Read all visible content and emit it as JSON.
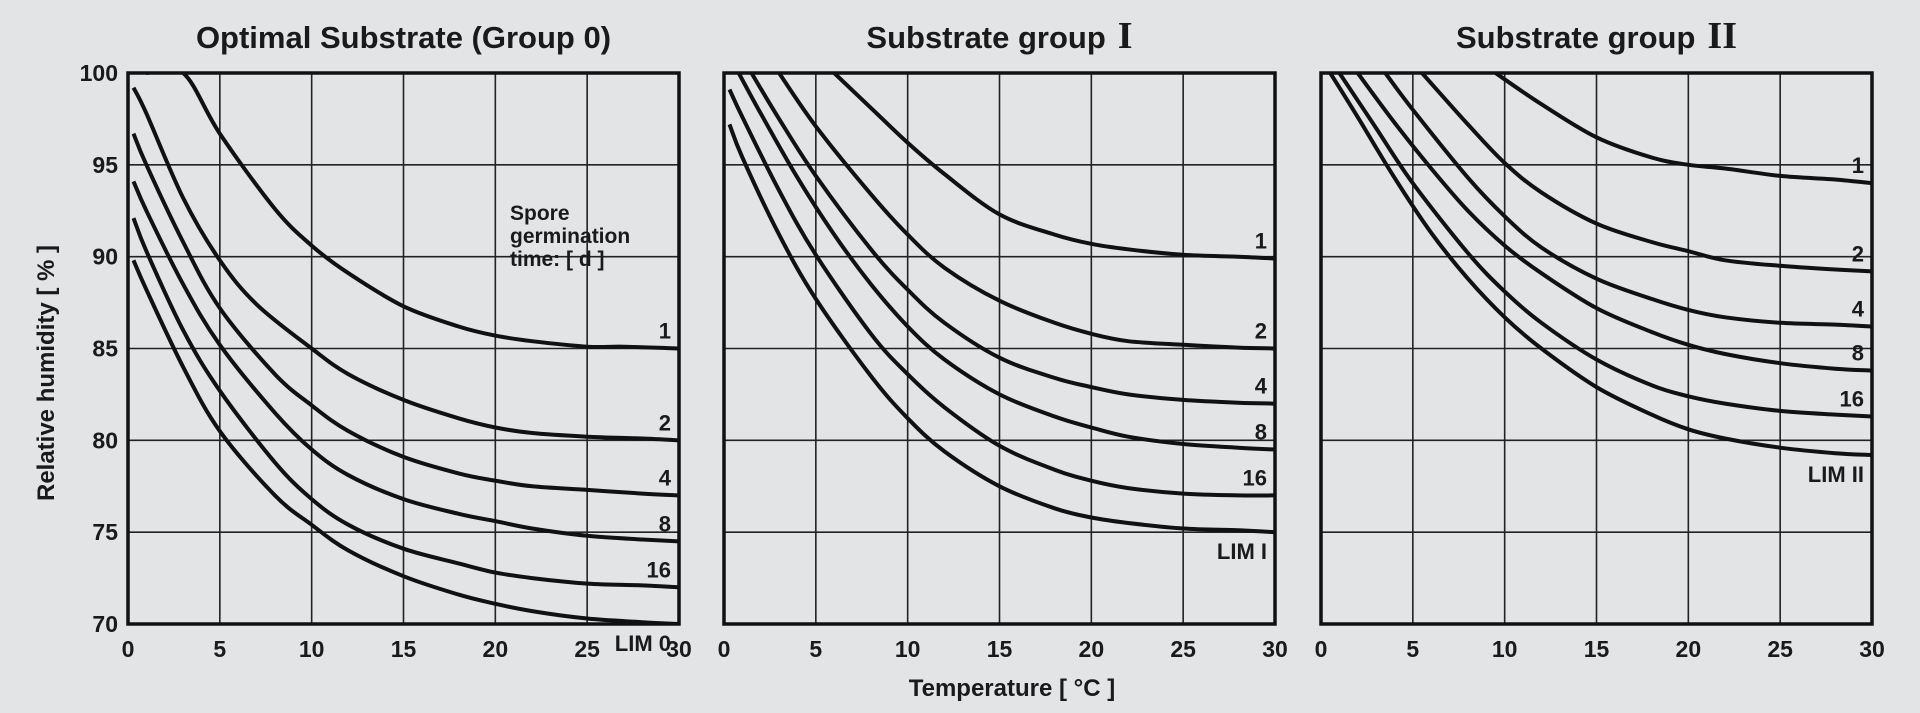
{
  "chart_data": {
    "type": "line",
    "xlabel": "Temperature  [ °C ]",
    "ylabel": "Relative humidity [ % ]",
    "xlim": [
      0,
      30
    ],
    "ylim": [
      70,
      100
    ],
    "xticks": [
      0,
      5,
      10,
      15,
      20,
      25,
      30
    ],
    "yticks": [
      70,
      75,
      80,
      85,
      90,
      95,
      100
    ],
    "grid": true,
    "panels": [
      {
        "title": "Optimal Substrate (Group 0)",
        "title_roman": "",
        "annotation": [
          "Spore",
          "germination",
          "time: [ d ]"
        ],
        "series": [
          {
            "name": "1",
            "x": [
              1,
              3,
              5,
              8,
              10,
              12,
              15,
              18,
              20,
              22,
              25,
              27,
              30
            ],
            "y": [
              100,
              100,
              96.7,
              92.6,
              90.6,
              89.1,
              87.3,
              86.2,
              85.7,
              85.4,
              85.1,
              85.1,
              85
            ]
          },
          {
            "name": "2",
            "x": [
              0.3,
              1,
              3,
              5,
              7,
              10,
              12,
              15,
              18,
              20,
              22,
              25,
              28,
              30
            ],
            "y": [
              99.2,
              97.8,
              93.2,
              89.8,
              87.4,
              85,
              83.6,
              82.2,
              81.2,
              80.7,
              80.4,
              80.2,
              80.1,
              80
            ]
          },
          {
            "name": "4",
            "x": [
              0.3,
              1,
              3,
              5,
              8,
              10,
              12,
              15,
              18,
              20,
              22,
              25,
              28,
              30
            ],
            "y": [
              96.7,
              95,
              90.8,
              87.2,
              83.6,
              81.9,
              80.5,
              79.1,
              78.2,
              77.8,
              77.5,
              77.3,
              77.1,
              77
            ]
          },
          {
            "name": "8",
            "x": [
              0.3,
              1,
              3,
              5,
              8,
              10,
              12,
              15,
              18,
              20,
              22,
              25,
              28,
              30
            ],
            "y": [
              94.1,
              92.5,
              88.5,
              85.2,
              81.5,
              79.5,
              78.1,
              76.8,
              76,
              75.6,
              75.2,
              74.8,
              74.6,
              74.5
            ]
          },
          {
            "name": "16",
            "x": [
              0.3,
              1,
              3,
              5,
              8,
              10,
              12,
              15,
              18,
              20,
              22,
              25,
              28,
              30
            ],
            "y": [
              92.1,
              90.3,
              86,
              82.7,
              78.8,
              76.8,
              75.4,
              74.1,
              73.3,
              72.8,
              72.5,
              72.2,
              72.1,
              72
            ]
          },
          {
            "name": "LIM 0",
            "x": [
              0.3,
              1,
              3,
              5,
              8,
              10,
              12,
              15,
              18,
              20,
              22,
              25,
              28,
              30
            ],
            "y": [
              89.8,
              88.2,
              84,
              80.5,
              77,
              75.4,
              74,
              72.6,
              71.6,
              71.1,
              70.7,
              70.3,
              70.1,
              70
            ]
          }
        ]
      },
      {
        "title": "Substrate group",
        "title_roman": "I",
        "annotation": [],
        "series": [
          {
            "name": "1",
            "x": [
              6,
              8,
              10,
              12,
              15,
              18,
              20,
              22,
              25,
              28,
              30
            ],
            "y": [
              100,
              98.1,
              96.2,
              94.5,
              92.3,
              91.2,
              90.7,
              90.4,
              90.1,
              90,
              89.9
            ]
          },
          {
            "name": "2",
            "x": [
              3,
              5,
              8,
              10,
              12,
              15,
              18,
              20,
              22,
              25,
              28,
              30
            ],
            "y": [
              100,
              97.1,
              93.4,
              91.2,
              89.4,
              87.6,
              86.4,
              85.8,
              85.4,
              85.2,
              85.05,
              85
            ]
          },
          {
            "name": "4",
            "x": [
              1.5,
              3,
              5,
              8,
              10,
              12,
              15,
              18,
              20,
              22,
              25,
              28,
              30
            ],
            "y": [
              100,
              97.5,
              94.4,
              90.4,
              88.2,
              86.4,
              84.5,
              83.4,
              82.9,
              82.5,
              82.2,
              82.05,
              82
            ]
          },
          {
            "name": "8",
            "x": [
              0.8,
              2,
              4,
              6,
              8,
              10,
              12,
              15,
              18,
              20,
              22,
              25,
              28,
              30
            ],
            "y": [
              100,
              97.8,
              94.3,
              91.2,
              88.5,
              86.2,
              84.4,
              82.5,
              81.3,
              80.7,
              80.2,
              79.8,
              79.6,
              79.5
            ]
          },
          {
            "name": "16",
            "x": [
              0.3,
              1,
              3,
              5,
              8,
              10,
              12,
              15,
              18,
              20,
              22,
              25,
              28,
              30
            ],
            "y": [
              99.1,
              97.6,
              93.6,
              90.1,
              85.8,
              83.6,
              81.8,
              79.7,
              78.4,
              77.8,
              77.4,
              77.1,
              77,
              77
            ]
          },
          {
            "name": "LIM I",
            "x": [
              0.3,
              1,
              3,
              5,
              8,
              10,
              12,
              15,
              18,
              20,
              22,
              25,
              28,
              30
            ],
            "y": [
              97.2,
              95.4,
              91.2,
              87.7,
              83.5,
              81.2,
              79.4,
              77.5,
              76.3,
              75.8,
              75.5,
              75.2,
              75.1,
              75
            ]
          }
        ]
      },
      {
        "title": "Substrate group",
        "title_roman": "II",
        "annotation": [],
        "series": [
          {
            "name": "1",
            "x": [
              9.5,
              12,
              15,
              18,
              20,
              22,
              25,
              28,
              30
            ],
            "y": [
              100,
              98.3,
              96.5,
              95.4,
              95,
              94.8,
              94.4,
              94.2,
              94
            ]
          },
          {
            "name": "2",
            "x": [
              5.5,
              8,
              10,
              12,
              15,
              18,
              20,
              22,
              25,
              28,
              30
            ],
            "y": [
              100,
              97.2,
              95.1,
              93.5,
              91.8,
              90.8,
              90.3,
              89.8,
              89.5,
              89.3,
              89.2
            ]
          },
          {
            "name": "4",
            "x": [
              3.5,
              5,
              8,
              10,
              12,
              15,
              18,
              20,
              22,
              25,
              28,
              30
            ],
            "y": [
              100,
              98,
              94.3,
              92.2,
              90.5,
              88.8,
              87.7,
              87.1,
              86.7,
              86.4,
              86.3,
              86.2
            ]
          },
          {
            "name": "8",
            "x": [
              2,
              4,
              6,
              8,
              10,
              12,
              15,
              18,
              20,
              22,
              25,
              28,
              30
            ],
            "y": [
              100,
              97.3,
              94.8,
              92.5,
              90.6,
              89.1,
              87.2,
              85.9,
              85.2,
              84.7,
              84.2,
              83.9,
              83.8
            ]
          },
          {
            "name": "16",
            "x": [
              1,
              3,
              5,
              8,
              10,
              12,
              15,
              18,
              20,
              22,
              25,
              28,
              30
            ],
            "y": [
              100,
              97,
              94,
              90.2,
              88.1,
              86.4,
              84.4,
              83,
              82.4,
              82,
              81.6,
              81.4,
              81.3
            ]
          },
          {
            "name": "LIM II",
            "x": [
              0.5,
              2,
              4,
              6,
              8,
              10,
              12,
              15,
              18,
              20,
              22,
              25,
              28,
              30
            ],
            "y": [
              100,
              97.6,
              94.3,
              91.3,
              88.8,
              86.7,
              85,
              82.9,
              81.4,
              80.6,
              80.1,
              79.6,
              79.3,
              79.2
            ]
          }
        ]
      }
    ]
  }
}
